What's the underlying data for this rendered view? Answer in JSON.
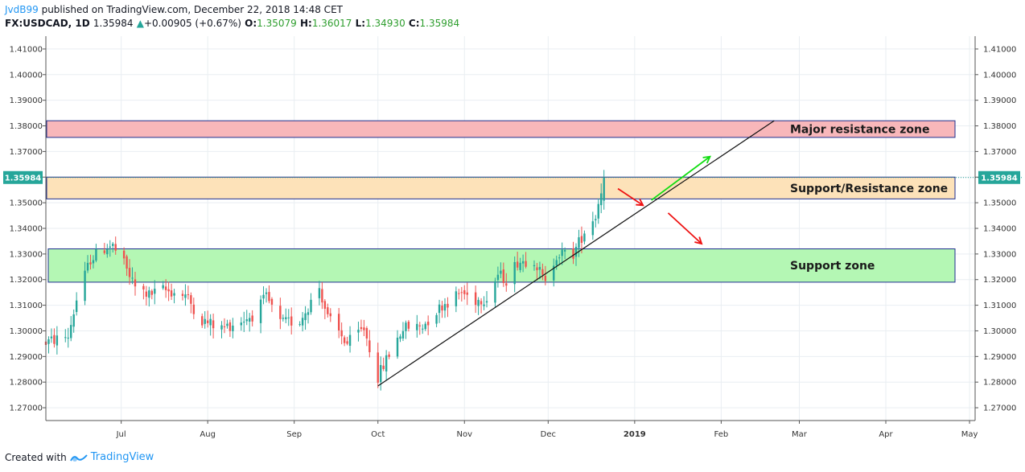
{
  "header": {
    "user": "JvdB99",
    "published": " published on TradingView.com, December 22, 2018 14:48 CET",
    "symbol": "FX:USDCAD, 1D",
    "last": "1.35984",
    "change": "+0.00905 (+0.67%)",
    "open_label": "O:",
    "open": "1.35079",
    "high_label": "H:",
    "high": "1.36017",
    "low_label": "L:",
    "low": "1.34930",
    "close_label": "C:",
    "close": "1.35984"
  },
  "footer": {
    "created_with": "Created with",
    "brand": "TradingView"
  },
  "chart_data": {
    "type": "candlestick",
    "title": "",
    "symbol": "FX:USDCAD",
    "interval": "1D",
    "ylim": [
      1.265,
      1.415
    ],
    "yticks": [
      "1.27000",
      "1.28000",
      "1.29000",
      "1.30000",
      "1.31000",
      "1.32000",
      "1.33000",
      "1.34000",
      "1.35000",
      "1.36000",
      "1.37000",
      "1.38000",
      "1.39000",
      "1.40000",
      "1.41000"
    ],
    "x_range": [
      "2018-06-04",
      "2019-05-03"
    ],
    "xticks": [
      {
        "date": "2018-07-01",
        "label": "Jul"
      },
      {
        "date": "2018-08-01",
        "label": "Aug"
      },
      {
        "date": "2018-09-01",
        "label": "Sep"
      },
      {
        "date": "2018-10-01",
        "label": "Oct"
      },
      {
        "date": "2018-11-01",
        "label": "Nov"
      },
      {
        "date": "2018-12-01",
        "label": "Dec"
      },
      {
        "date": "2019-01-01",
        "label": "2019"
      },
      {
        "date": "2019-02-01",
        "label": "Feb"
      },
      {
        "date": "2019-03-01",
        "label": "Mar"
      },
      {
        "date": "2019-04-01",
        "label": "Apr"
      },
      {
        "date": "2019-05-01",
        "label": "May"
      }
    ],
    "last_price_label": "1.35984",
    "close_path": [
      [
        "2018-06-04",
        1.2955
      ],
      [
        "2018-06-12",
        1.298
      ],
      [
        "2018-06-15",
        1.312
      ],
      [
        "2018-06-20",
        1.328
      ],
      [
        "2018-06-26",
        1.333
      ],
      [
        "2018-06-28",
        1.333
      ],
      [
        "2018-07-02",
        1.326
      ],
      [
        "2018-07-06",
        1.317
      ],
      [
        "2018-07-11",
        1.314
      ],
      [
        "2018-07-16",
        1.316
      ],
      [
        "2018-07-20",
        1.315
      ],
      [
        "2018-07-24",
        1.314
      ],
      [
        "2018-07-30",
        1.304
      ],
      [
        "2018-08-06",
        1.301
      ],
      [
        "2018-08-13",
        1.304
      ],
      [
        "2018-08-17",
        1.306
      ],
      [
        "2018-08-22",
        1.313
      ],
      [
        "2018-08-27",
        1.303
      ],
      [
        "2018-09-03",
        1.304
      ],
      [
        "2018-09-10",
        1.317
      ],
      [
        "2018-09-13",
        1.305
      ],
      [
        "2018-09-20",
        1.295
      ],
      [
        "2018-09-26",
        1.301
      ],
      [
        "2018-10-01",
        1.282
      ],
      [
        "2018-10-05",
        1.291
      ],
      [
        "2018-10-10",
        1.301
      ],
      [
        "2018-10-17",
        1.302
      ],
      [
        "2018-10-24",
        1.31
      ],
      [
        "2018-10-31",
        1.315
      ],
      [
        "2018-11-05",
        1.312
      ],
      [
        "2018-11-09",
        1.313
      ],
      [
        "2018-11-13",
        1.322
      ],
      [
        "2018-11-16",
        1.32
      ],
      [
        "2018-11-20",
        1.327
      ],
      [
        "2018-11-26",
        1.328
      ],
      [
        "2018-11-30",
        1.318
      ],
      [
        "2018-12-04",
        1.33
      ],
      [
        "2018-12-10",
        1.33
      ],
      [
        "2018-12-14",
        1.339
      ],
      [
        "2018-12-18",
        1.345
      ],
      [
        "2018-12-21",
        1.3598
      ]
    ],
    "zones": [
      {
        "label": "Major resistance zone",
        "from": 1.3755,
        "to": 1.382,
        "color": "#f8b7ba"
      },
      {
        "label": "Support/Resistance zone",
        "from": 1.3515,
        "to": 1.36,
        "color": "#fde2b9"
      },
      {
        "label": "Support zone",
        "from": 1.319,
        "to": 1.332,
        "color": "#b4f7b4"
      }
    ],
    "trendline": {
      "from": [
        "2018-10-01",
        1.2785
      ],
      "to": [
        "2019-02-20",
        1.382
      ]
    },
    "arrows": [
      {
        "from": [
          "2018-12-26",
          1.3555
        ],
        "to": [
          "2019-01-04",
          1.349
        ],
        "color": "#ee1111"
      },
      {
        "from": [
          "2019-01-07",
          1.351
        ],
        "to": [
          "2019-01-28",
          1.368
        ],
        "color": "#11dd11"
      },
      {
        "from": [
          "2019-01-13",
          1.346
        ],
        "to": [
          "2019-01-25",
          1.334
        ],
        "color": "#ee1111"
      }
    ],
    "colors": {
      "up": "#26a69a",
      "down": "#ef5350",
      "grid": "#e9eef2",
      "last_price": "#26a69a"
    }
  }
}
